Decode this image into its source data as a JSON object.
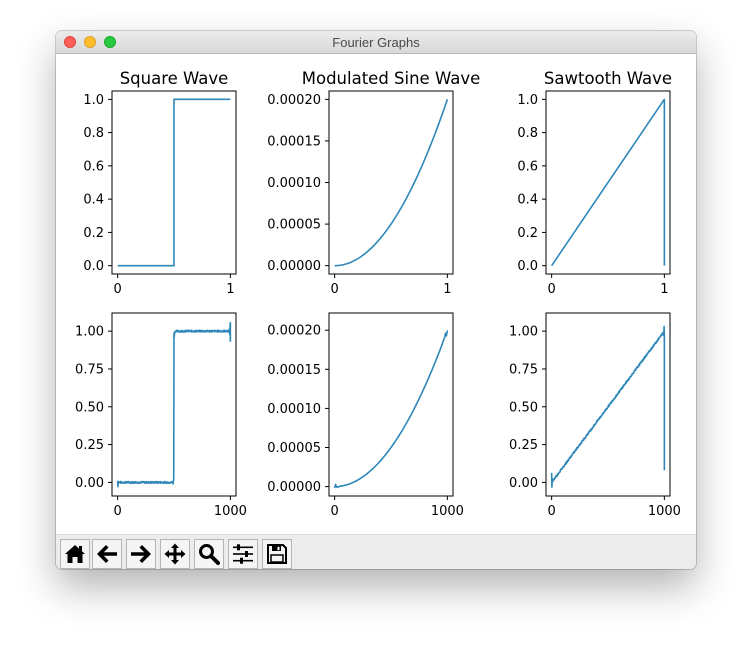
{
  "window": {
    "title": "Fourier Graphs"
  },
  "colors": {
    "line": "#2e87b8",
    "toolbar_bg": "#ececec"
  },
  "toolbar": {
    "buttons": [
      {
        "icon": "home-icon"
      },
      {
        "icon": "back-arrow-icon"
      },
      {
        "icon": "forward-arrow-icon"
      },
      {
        "icon": "pan-move-icon"
      },
      {
        "icon": "zoom-magnifier-icon"
      },
      {
        "icon": "configure-subplots-icon"
      },
      {
        "icon": "save-floppy-icon"
      }
    ]
  },
  "chart_data": [
    {
      "type": "line",
      "title": "Square Wave",
      "function": "square",
      "x_range": [
        0,
        1
      ],
      "xlim": [
        -0.05,
        1.05
      ],
      "ylim": [
        -0.05,
        1.05
      ],
      "xticks": [
        0,
        1
      ],
      "xtick_labels": [
        "0",
        "1"
      ],
      "yticks": [
        0,
        0.2,
        0.4,
        0.6,
        0.8,
        1.0
      ],
      "ytick_labels": [
        "0.0",
        "0.2",
        "0.4",
        "0.6",
        "0.8",
        "1.0"
      ],
      "x": [
        0,
        0.5,
        0.5,
        1
      ],
      "y": [
        0,
        0,
        1,
        1
      ]
    },
    {
      "type": "line",
      "title": "Modulated Sine Wave",
      "function": "modulated_sine",
      "x_range": [
        0,
        1
      ],
      "xlim": [
        -0.05,
        1.05
      ],
      "ylim": [
        -1e-05,
        0.00021
      ],
      "xticks": [
        0,
        1
      ],
      "xtick_labels": [
        "0",
        "1"
      ],
      "yticks": [
        0,
        5e-05,
        0.0001,
        0.00015,
        0.0002
      ],
      "ytick_labels": [
        "0.00000",
        "0.00005",
        "0.00010",
        "0.00015",
        "0.00020"
      ],
      "x": [
        0,
        0.1,
        0.2,
        0.3,
        0.4,
        0.5,
        0.6,
        0.7,
        0.8,
        0.9,
        1.0
      ],
      "y": [
        0,
        2e-06,
        8e-06,
        1.8e-05,
        3.2e-05,
        5e-05,
        7.2e-05,
        9.8e-05,
        0.000128,
        0.000162,
        0.0002
      ]
    },
    {
      "type": "line",
      "title": "Sawtooth Wave",
      "function": "sawtooth",
      "x_range": [
        0,
        1
      ],
      "xlim": [
        -0.05,
        1.05
      ],
      "ylim": [
        -0.05,
        1.05
      ],
      "xticks": [
        0,
        1
      ],
      "xtick_labels": [
        "0",
        "1"
      ],
      "yticks": [
        0,
        0.2,
        0.4,
        0.6,
        0.8,
        1.0
      ],
      "ytick_labels": [
        "0.0",
        "0.2",
        "0.4",
        "0.6",
        "0.8",
        "1.0"
      ],
      "x": [
        0,
        1,
        1
      ],
      "y": [
        0,
        1,
        0
      ]
    },
    {
      "type": "line",
      "title": "",
      "function": "square_fourier",
      "x_range": [
        0,
        1000
      ],
      "xlim": [
        -50,
        1050
      ],
      "ylim": [
        -0.09,
        1.12
      ],
      "xticks": [
        0,
        1000
      ],
      "xtick_labels": [
        "0",
        "1000"
      ],
      "yticks": [
        0,
        0.25,
        0.5,
        0.75,
        1.0
      ],
      "ytick_labels": [
        "0.00",
        "0.25",
        "0.50",
        "0.75",
        "1.00"
      ],
      "x": [
        0,
        499,
        500,
        1000
      ],
      "y": [
        0,
        0,
        1,
        1
      ]
    },
    {
      "type": "line",
      "title": "",
      "function": "modulated_sine_fourier",
      "x_range": [
        0,
        1000
      ],
      "xlim": [
        -50,
        1050
      ],
      "ylim": [
        -1.2e-05,
        0.000222
      ],
      "xticks": [
        0,
        1000
      ],
      "xtick_labels": [
        "0",
        "1000"
      ],
      "yticks": [
        0,
        5e-05,
        0.0001,
        0.00015,
        0.0002
      ],
      "ytick_labels": [
        "0.00000",
        "0.00005",
        "0.00010",
        "0.00015",
        "0.00020"
      ],
      "x": [
        0,
        100,
        200,
        300,
        400,
        500,
        600,
        700,
        800,
        900,
        1000
      ],
      "y": [
        0,
        2e-06,
        8e-06,
        1.8e-05,
        3.2e-05,
        5e-05,
        7.2e-05,
        9.8e-05,
        0.000128,
        0.000162,
        0.0002
      ]
    },
    {
      "type": "line",
      "title": "",
      "function": "sawtooth_fourier",
      "x_range": [
        0,
        1000
      ],
      "xlim": [
        -50,
        1050
      ],
      "ylim": [
        -0.09,
        1.12
      ],
      "xticks": [
        0,
        1000
      ],
      "xtick_labels": [
        "0",
        "1000"
      ],
      "yticks": [
        0,
        0.25,
        0.5,
        0.75,
        1.0
      ],
      "ytick_labels": [
        "0.00",
        "0.25",
        "0.50",
        "0.75",
        "1.00"
      ],
      "x": [
        0,
        1000,
        1000
      ],
      "y": [
        0,
        1,
        0.08
      ]
    }
  ]
}
